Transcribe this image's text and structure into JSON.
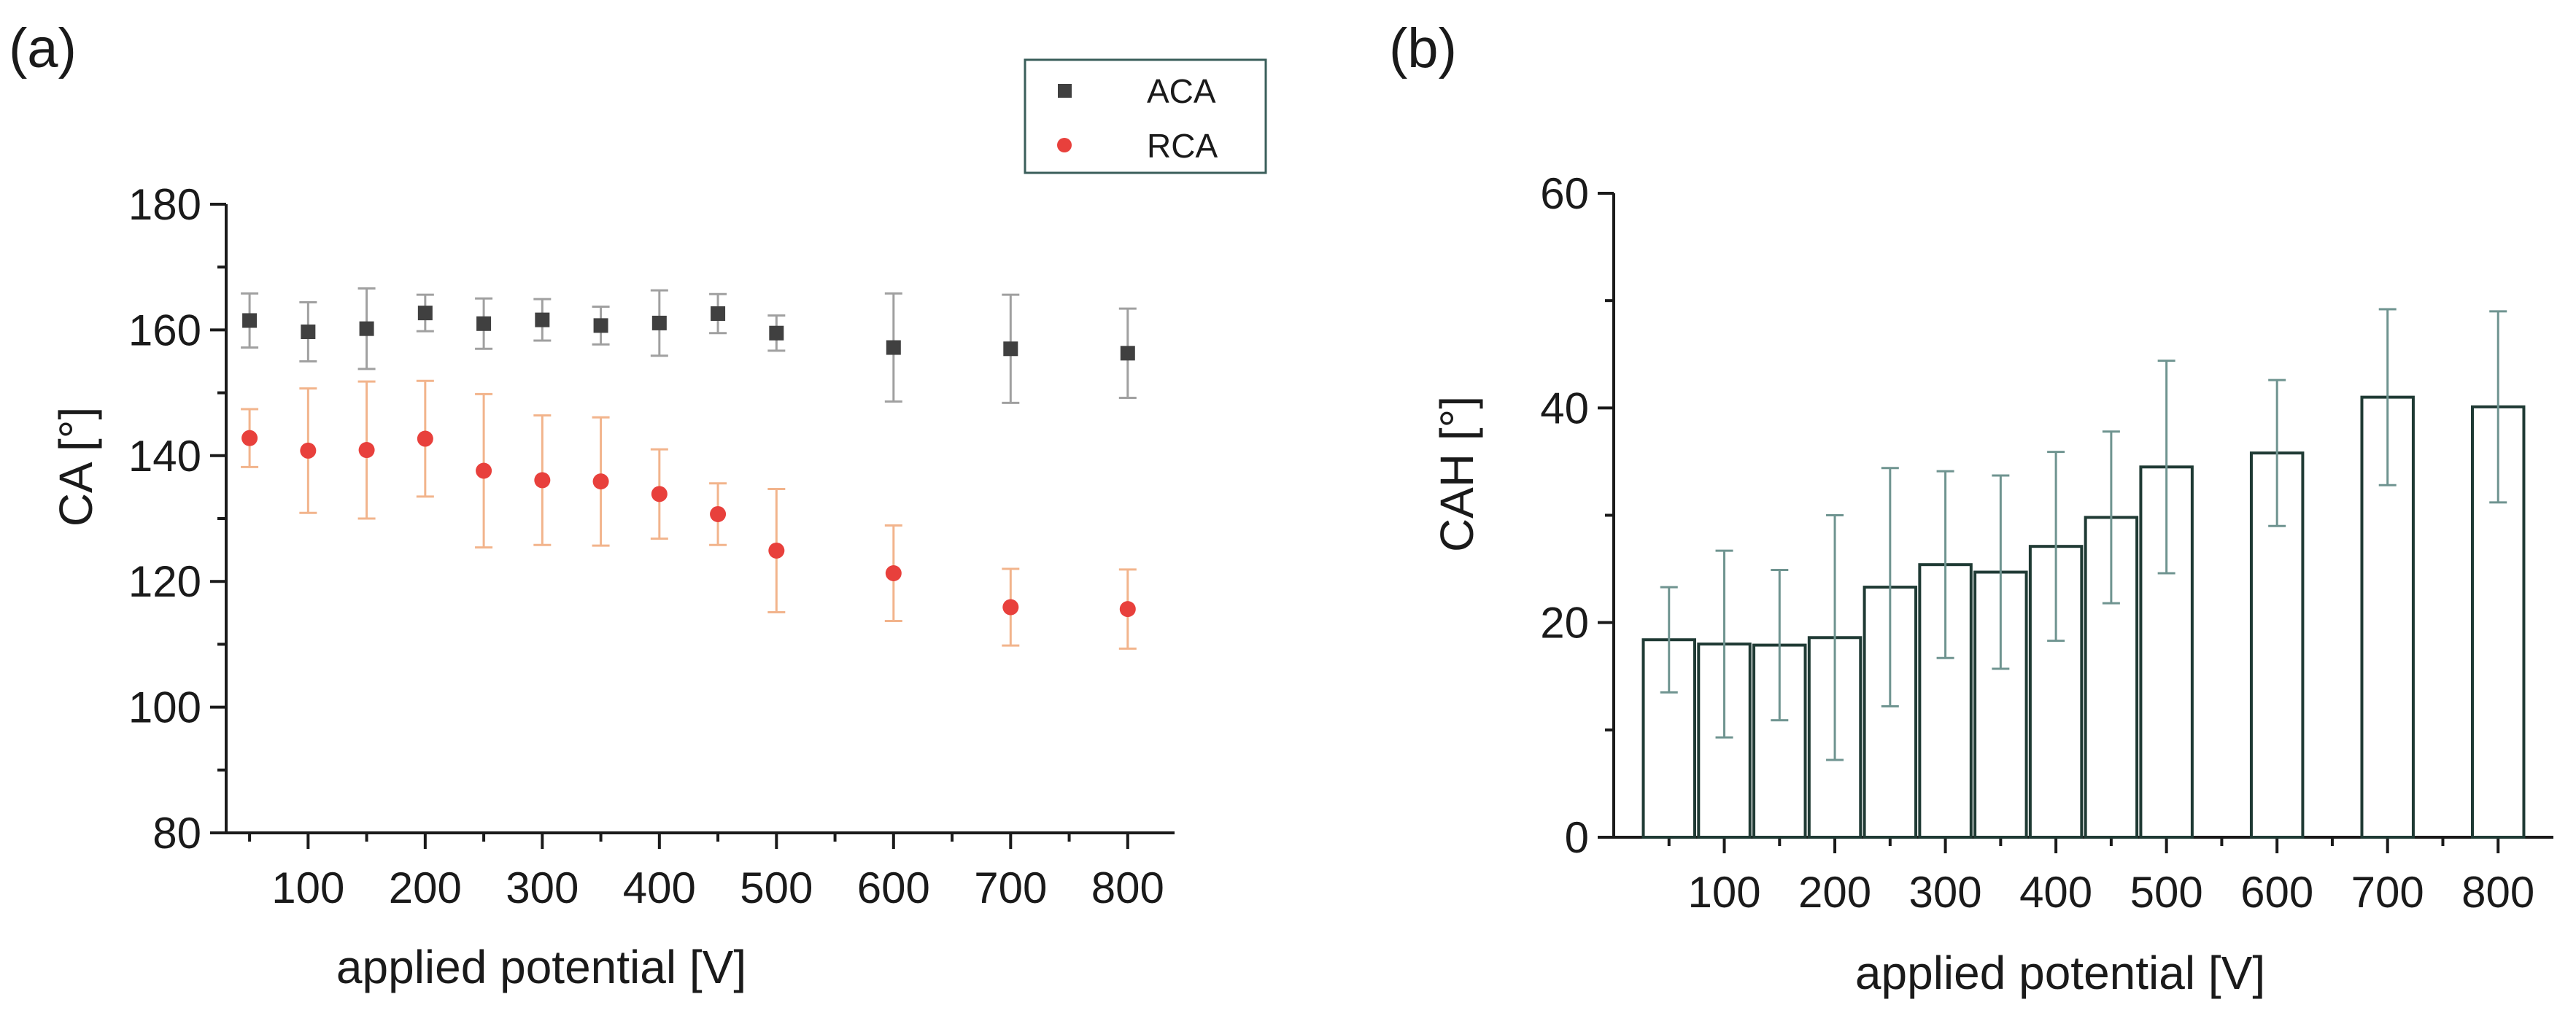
{
  "chart_data": [
    {
      "panel_label": "(a)",
      "type": "scatter",
      "xlabel": "applied potential [V]",
      "ylabel": "CA [°]",
      "xlim": [
        30,
        840
      ],
      "ylim": [
        80,
        180
      ],
      "xticks": [
        100,
        200,
        300,
        400,
        500,
        600,
        700,
        800
      ],
      "yticks": [
        80,
        100,
        120,
        140,
        160,
        180
      ],
      "legend_position": "top-right",
      "series": [
        {
          "name": "ACA",
          "marker": "square",
          "color": "#404040",
          "error_color": "#a0a0a0",
          "x": [
            50,
            100,
            150,
            200,
            250,
            300,
            350,
            400,
            450,
            500,
            600,
            700,
            800
          ],
          "y": [
            161.5,
            159.7,
            160.2,
            162.7,
            161.0,
            161.6,
            160.7,
            161.1,
            162.6,
            159.5,
            157.2,
            157.0,
            156.3
          ],
          "err": [
            4.3,
            4.7,
            6.4,
            2.9,
            4.0,
            3.3,
            3.0,
            5.2,
            3.1,
            2.8,
            8.6,
            8.6,
            7.1
          ]
        },
        {
          "name": "RCA",
          "marker": "circle",
          "color": "#e8403c",
          "error_color": "#f2b48c",
          "x": [
            50,
            100,
            150,
            200,
            250,
            300,
            350,
            400,
            450,
            500,
            600,
            700,
            800
          ],
          "y": [
            142.8,
            140.8,
            140.9,
            142.7,
            137.6,
            136.1,
            135.9,
            133.9,
            130.7,
            124.9,
            121.3,
            115.9,
            115.6
          ],
          "err": [
            4.6,
            9.9,
            10.9,
            9.2,
            12.2,
            10.3,
            10.2,
            7.1,
            4.9,
            9.8,
            7.6,
            6.1,
            6.3
          ]
        }
      ]
    },
    {
      "panel_label": "(b)",
      "type": "bar",
      "xlabel": "applied potential [V]",
      "ylabel": "CAH [°]",
      "xlim": [
        0,
        850
      ],
      "ylim": [
        0,
        60
      ],
      "xticks": [
        100,
        200,
        300,
        400,
        500,
        600,
        700,
        800
      ],
      "yticks": [
        0,
        20,
        40,
        60
      ],
      "bar_edge_color": "#1f3a34",
      "error_color": "#6f9490",
      "series": [
        {
          "x": [
            50,
            100,
            150,
            200,
            250,
            300,
            350,
            400,
            450,
            500,
            600,
            700,
            800
          ],
          "values": [
            18.4,
            18.0,
            17.9,
            18.6,
            23.3,
            25.4,
            24.7,
            27.1,
            29.8,
            34.5,
            35.8,
            41.0,
            40.1
          ],
          "err": [
            4.9,
            8.7,
            7.0,
            11.4,
            11.1,
            8.7,
            9.0,
            8.8,
            8.0,
            9.9,
            6.8,
            8.2,
            8.9
          ]
        }
      ]
    }
  ]
}
